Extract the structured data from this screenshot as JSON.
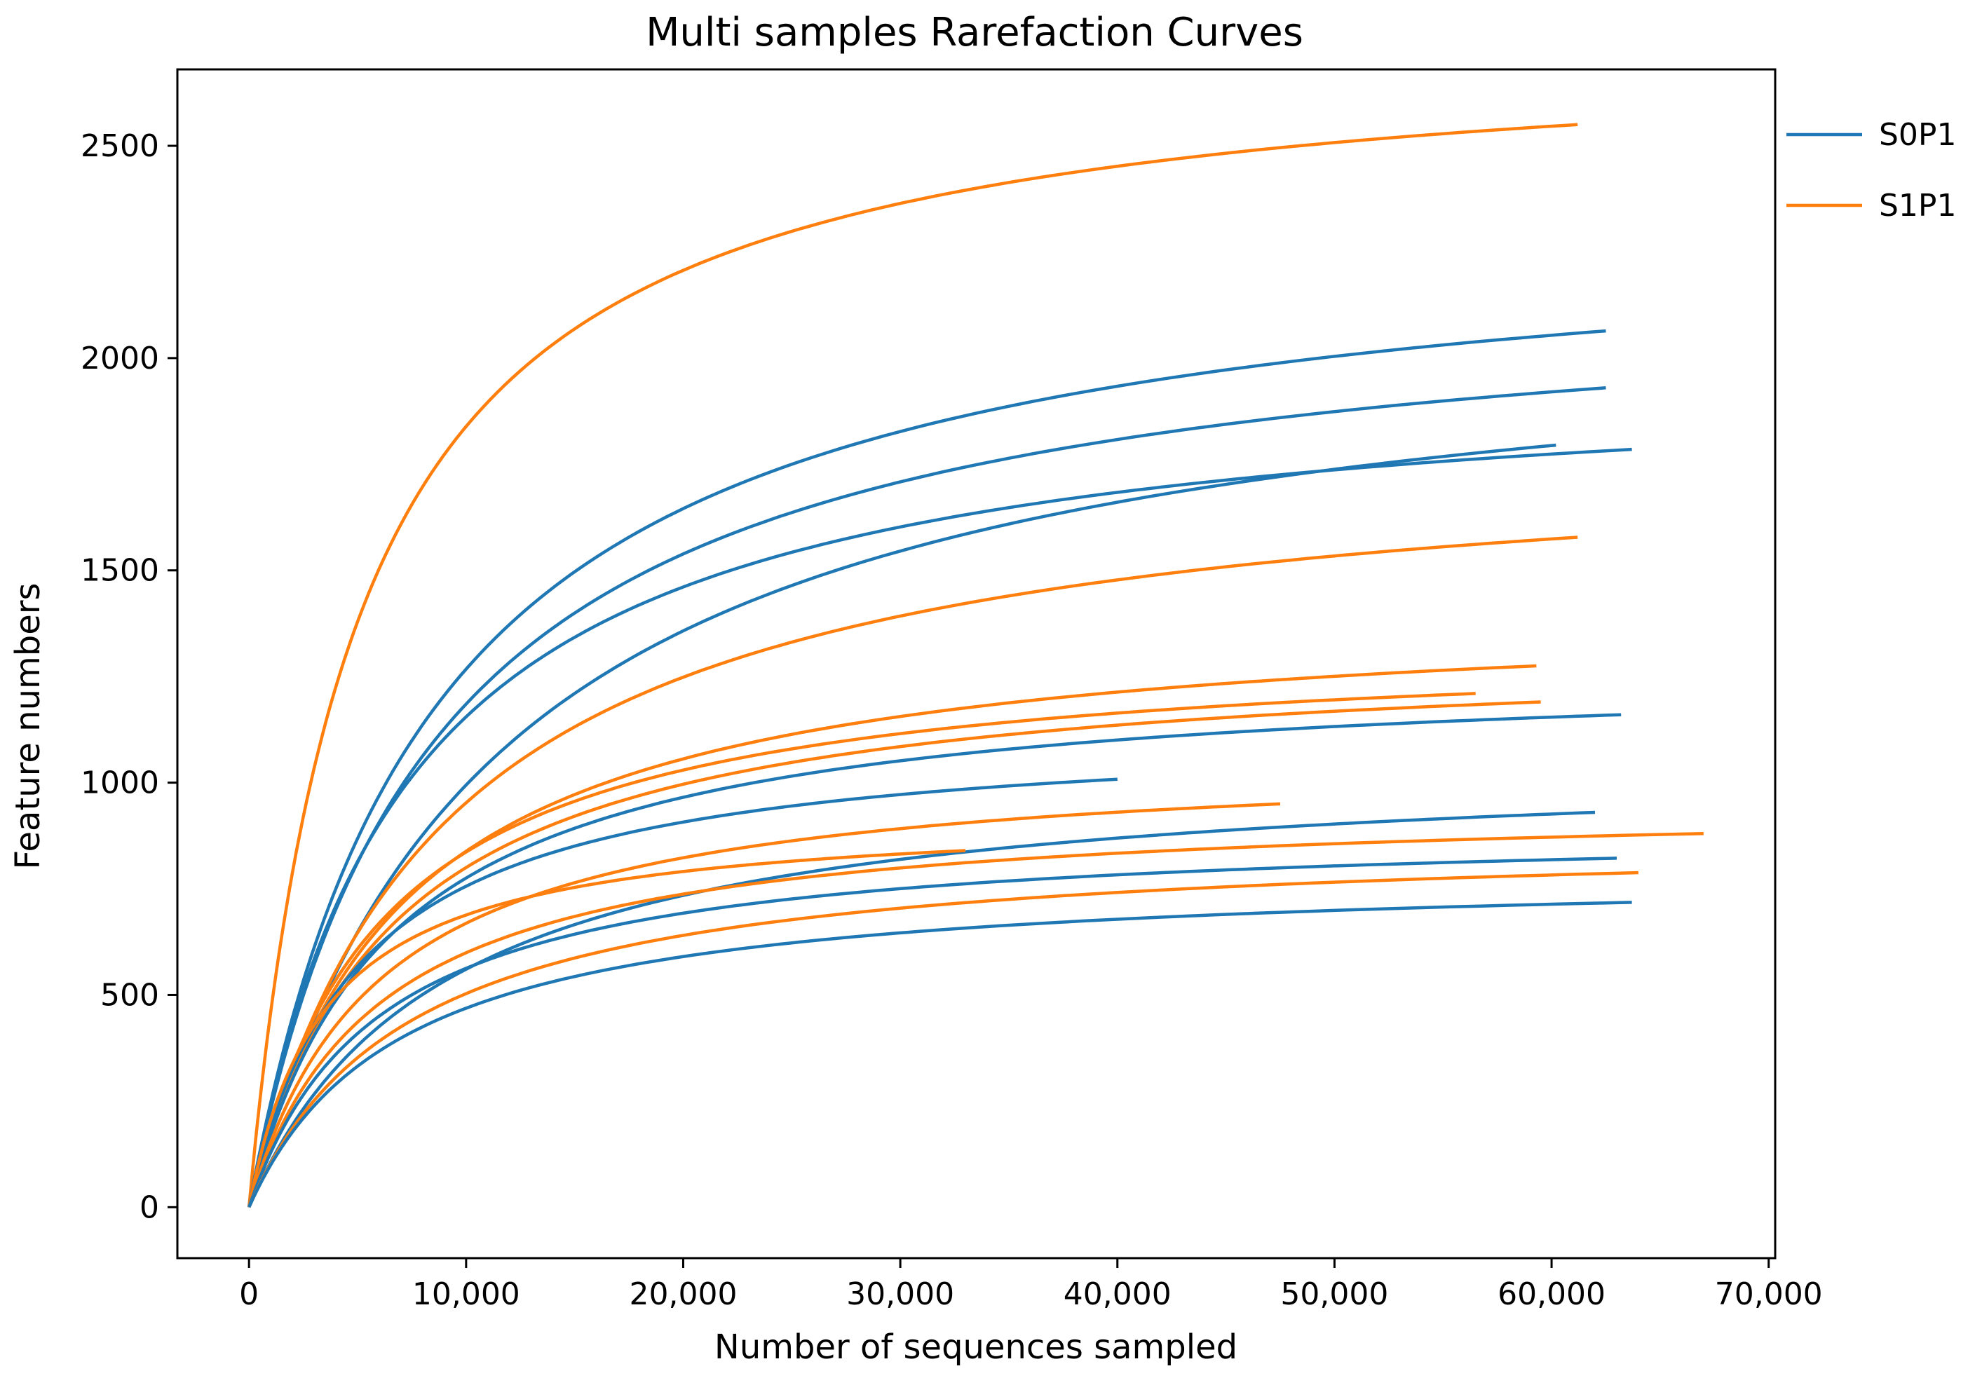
{
  "chart_data": {
    "type": "line",
    "title": "Multi samples Rarefaction Curves",
    "xlabel": "Number of sequences sampled",
    "ylabel": "Feature numbers",
    "xlim": [
      -3300,
      70300
    ],
    "ylim": [
      -120,
      2680
    ],
    "xticks": [
      0,
      10000,
      20000,
      30000,
      40000,
      50000,
      60000,
      70000
    ],
    "xtick_labels": [
      "0",
      "10,000",
      "20,000",
      "30,000",
      "40,000",
      "50,000",
      "60,000",
      "70,000"
    ],
    "yticks": [
      0,
      500,
      1000,
      1500,
      2000,
      2500
    ],
    "ytick_labels": [
      "0",
      "500",
      "1000",
      "1500",
      "2000",
      "2500"
    ],
    "grid": false,
    "legend_position": "outside-top-right",
    "groups": [
      {
        "name": "S0P1",
        "color": "#1f77b4"
      },
      {
        "name": "S1P1",
        "color": "#ff7f0e"
      }
    ],
    "series": [
      {
        "group": "S1P1",
        "max_x": 61200,
        "final_y": 2550,
        "half_x": 5000
      },
      {
        "group": "S0P1",
        "max_x": 62500,
        "final_y": 2064,
        "half_x": 8500
      },
      {
        "group": "S0P1",
        "max_x": 62500,
        "final_y": 1930,
        "half_x": 8500
      },
      {
        "group": "S0P1",
        "max_x": 60200,
        "final_y": 1795,
        "half_x": 11500
      },
      {
        "group": "S0P1",
        "max_x": 63700,
        "final_y": 1785,
        "half_x": 7200
      },
      {
        "group": "S1P1",
        "max_x": 61200,
        "final_y": 1578,
        "half_x": 9000
      },
      {
        "group": "S1P1",
        "max_x": 59300,
        "final_y": 1275,
        "half_x": 7000
      },
      {
        "group": "S1P1",
        "max_x": 56500,
        "final_y": 1210,
        "half_x": 6000
      },
      {
        "group": "S1P1",
        "max_x": 59500,
        "final_y": 1190,
        "half_x": 6500
      },
      {
        "group": "S0P1",
        "max_x": 63200,
        "final_y": 1160,
        "half_x": 6500
      },
      {
        "group": "S0P1",
        "max_x": 40000,
        "final_y": 1008,
        "half_x": 5000
      },
      {
        "group": "S1P1",
        "max_x": 47500,
        "final_y": 950,
        "half_x": 6000
      },
      {
        "group": "S0P1",
        "max_x": 62000,
        "final_y": 930,
        "half_x": 9000
      },
      {
        "group": "S1P1",
        "max_x": 67000,
        "final_y": 880,
        "half_x": 6000
      },
      {
        "group": "S1P1",
        "max_x": 33000,
        "final_y": 840,
        "half_x": 3500
      },
      {
        "group": "S0P1",
        "max_x": 63000,
        "final_y": 822,
        "half_x": 6000
      },
      {
        "group": "S1P1",
        "max_x": 64000,
        "final_y": 788,
        "half_x": 7500
      },
      {
        "group": "S0P1",
        "max_x": 63700,
        "final_y": 718,
        "half_x": 7000
      }
    ]
  }
}
